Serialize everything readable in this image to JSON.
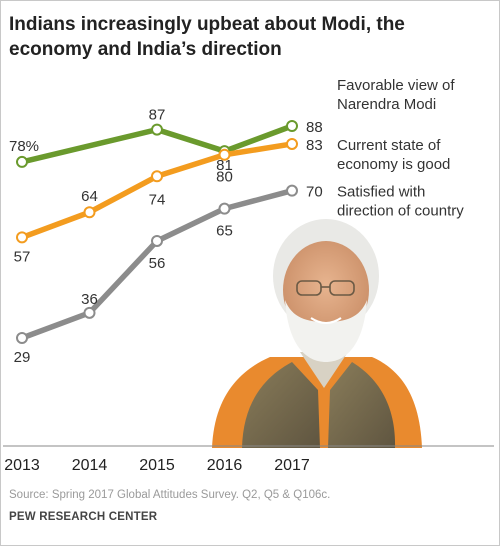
{
  "title": "Indians increasingly upbeat about Modi, the economy and India’s direction",
  "source": "Source: Spring 2017 Global Attitudes Survey. Q2, Q5 & Q106c.",
  "brand": "PEW RESEARCH CENTER",
  "chart_data": {
    "type": "line",
    "x": [
      "2013",
      "2014",
      "2015",
      "2016",
      "2017"
    ],
    "ylim": [
      20,
      95
    ],
    "grid": false,
    "legend": "right",
    "series": [
      {
        "name": "Favorable view of Narendra Modi",
        "label_lines": [
          "Favorable view of",
          "Narendra Modi"
        ],
        "color": "#6a9a2d",
        "values": [
          78,
          null,
          87,
          81,
          88
        ],
        "labels": [
          "78%",
          null,
          "87",
          "81",
          "88"
        ]
      },
      {
        "name": "Current state of economy is good",
        "label_lines": [
          "Current state of",
          "economy is good"
        ],
        "color": "#f39c1f",
        "values": [
          57,
          64,
          74,
          80,
          83
        ],
        "labels": [
          "57",
          "64",
          "74",
          "80",
          "83"
        ]
      },
      {
        "name": "Satisfied with direction of country",
        "label_lines": [
          "Satisfied with",
          "direction of country"
        ],
        "color": "#8c8c8c",
        "values": [
          29,
          36,
          56,
          65,
          70
        ],
        "labels": [
          "29",
          "36",
          "56",
          "65",
          "70"
        ]
      }
    ]
  },
  "photo": {
    "description_icon": "portrait-photo"
  }
}
